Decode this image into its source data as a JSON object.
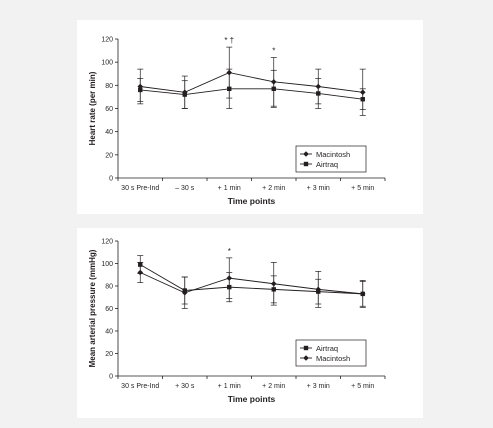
{
  "colors": {
    "line": "#231f20",
    "panel": "#ffffff",
    "background": "#f2f2f2"
  },
  "chart_data": [
    {
      "type": "line",
      "ylabel": "Heart rate (per min)",
      "xlabel": "Time points",
      "ylim": [
        0,
        120
      ],
      "yticks": [
        0,
        20,
        40,
        60,
        80,
        100,
        120
      ],
      "categories": [
        "30 s Pre-Ind",
        "– 30 s",
        "+ 1 min",
        "+ 2 min",
        "+ 3 min",
        "+ 5 min"
      ],
      "legend_position": "bottom-right",
      "series": [
        {
          "name": "Macintosh",
          "marker": "diamond",
          "values": [
            79,
            74,
            91,
            83,
            79,
            74
          ],
          "error": [
            15,
            14,
            22,
            21,
            15,
            20
          ]
        },
        {
          "name": "Airtraq",
          "marker": "square",
          "values": [
            76,
            72,
            77,
            77,
            73,
            68
          ],
          "error": [
            10,
            12,
            17,
            16,
            13,
            9
          ]
        }
      ],
      "annotations": [
        {
          "category": "+ 1 min",
          "text": "* †"
        },
        {
          "category": "+ 2 min",
          "text": "*"
        }
      ]
    },
    {
      "type": "line",
      "ylabel": "Mean arterial pressure (mmHg)",
      "xlabel": "Time points",
      "ylim": [
        0,
        120
      ],
      "yticks": [
        0,
        20,
        40,
        60,
        80,
        100,
        120
      ],
      "categories": [
        "30 s Pre-Ind",
        "+ 30 s",
        "+ 1 min",
        "+ 2 min",
        "+ 3 min",
        "+ 5 min"
      ],
      "legend_position": "bottom-right",
      "series": [
        {
          "name": "Airtraq",
          "marker": "square",
          "values": [
            99,
            76,
            79,
            77,
            75,
            73
          ],
          "error": [
            8,
            12,
            13,
            12,
            11,
            11
          ]
        },
        {
          "name": "Macintosh",
          "marker": "diamond",
          "values": [
            92,
            74,
            87,
            82,
            77,
            73
          ],
          "error": [
            9,
            14,
            18,
            19,
            16,
            12
          ]
        }
      ],
      "annotations": [
        {
          "category": "+ 1 min",
          "text": "*"
        }
      ]
    }
  ]
}
